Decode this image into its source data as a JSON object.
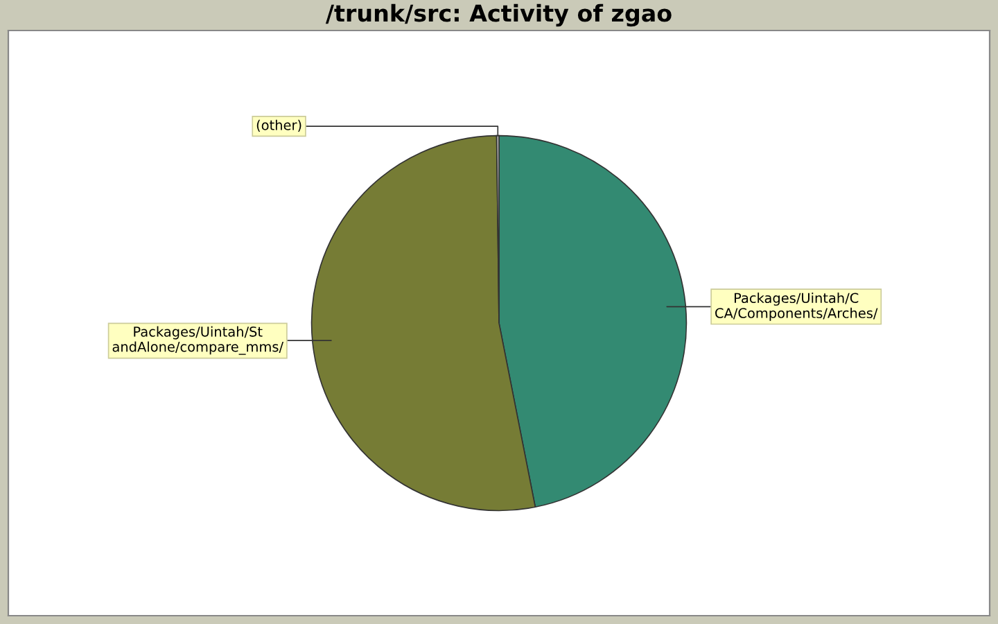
{
  "chart_data": {
    "type": "pie",
    "title": "/trunk/src: Activity of zgao",
    "categories": [
      "Packages/Uintah/CCA/Components/Arches/",
      "Packages/Uintah/StandAlone/compare_mms/",
      "(other)"
    ],
    "values": [
      46.9,
      52.9,
      0.2
    ],
    "colors": [
      "#338a72",
      "#767c35",
      "#c0c0c0"
    ]
  }
}
